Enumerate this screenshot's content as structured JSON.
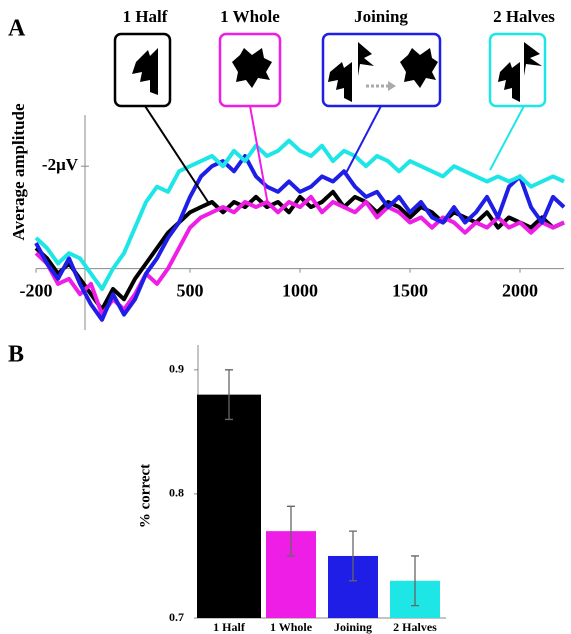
{
  "chart_data": [
    {
      "type": "line",
      "panel": "A",
      "ylabel": "Average amplitude",
      "x": [
        -200,
        -150,
        -100,
        -50,
        0,
        50,
        100,
        150,
        200,
        250,
        300,
        350,
        400,
        450,
        500,
        550,
        600,
        650,
        700,
        750,
        800,
        850,
        900,
        950,
        1000,
        1050,
        1100,
        1150,
        1200,
        1250,
        1300,
        1350,
        1400,
        1450,
        1500,
        1550,
        1600,
        1650,
        1700,
        1750,
        1800,
        1850,
        1900,
        1950,
        2000,
        2050,
        2100,
        2150,
        2200
      ],
      "series": [
        {
          "name": "1 Half",
          "color": "#000000",
          "values": [
            -0.4,
            -0.2,
            0.1,
            -0.1,
            0.2,
            0.5,
            0.8,
            0.4,
            0.6,
            0.2,
            -0.1,
            -0.4,
            -0.7,
            -0.9,
            -1.1,
            -1.2,
            -1.3,
            -1.1,
            -1.3,
            -1.2,
            -1.4,
            -1.2,
            -1.3,
            -1.1,
            -1.4,
            -1.2,
            -1.3,
            -1.5,
            -1.2,
            -1.4,
            -1.3,
            -1.1,
            -1.3,
            -1.2,
            -1.0,
            -1.2,
            -1.1,
            -0.9,
            -1.1,
            -1.0,
            -0.9,
            -1.1,
            -0.8,
            -1.0,
            -0.9,
            -0.8,
            -1.0,
            -0.8,
            -0.9
          ]
        },
        {
          "name": "1 Whole",
          "color": "#ee1ee6",
          "values": [
            -0.3,
            -0.1,
            0.3,
            0.2,
            0.5,
            0.3,
            0.9,
            0.6,
            0.8,
            0.5,
            0.1,
            0.3,
            0.0,
            -0.4,
            -0.8,
            -1.0,
            -1.1,
            -1.2,
            -1.1,
            -1.3,
            -1.2,
            -1.3,
            -1.1,
            -1.3,
            -1.2,
            -1.4,
            -1.1,
            -1.3,
            -1.2,
            -1.1,
            -1.3,
            -1.0,
            -1.2,
            -1.1,
            -0.9,
            -1.0,
            -0.8,
            -1.0,
            -0.9,
            -0.7,
            -0.9,
            -0.8,
            -1.0,
            -0.8,
            -0.9,
            -0.7,
            -0.9,
            -0.8,
            -0.9
          ]
        },
        {
          "name": "Joining",
          "color": "#1e1ee6",
          "values": [
            -0.5,
            -0.1,
            0.2,
            -0.2,
            0.3,
            0.7,
            1.0,
            0.5,
            0.9,
            0.6,
            0.1,
            -0.2,
            -0.6,
            -0.9,
            -1.4,
            -1.8,
            -2.0,
            -2.1,
            -1.9,
            -2.2,
            -1.8,
            -1.6,
            -1.5,
            -1.7,
            -1.5,
            -1.6,
            -1.8,
            -1.7,
            -1.9,
            -1.6,
            -1.4,
            -1.5,
            -1.2,
            -1.4,
            -1.1,
            -1.3,
            -1.0,
            -0.9,
            -1.2,
            -0.9,
            -1.1,
            -1.4,
            -1.0,
            -1.6,
            -1.8,
            -1.2,
            -0.9,
            -1.4,
            -1.2
          ]
        },
        {
          "name": "2 Halves",
          "color": "#1ee6e6",
          "values": [
            -0.6,
            -0.4,
            -0.1,
            -0.3,
            -0.2,
            0.1,
            0.4,
            0.0,
            -0.3,
            -0.8,
            -1.3,
            -1.6,
            -1.5,
            -1.9,
            -2.0,
            -2.1,
            -2.2,
            -2.0,
            -2.3,
            -2.1,
            -2.4,
            -2.2,
            -2.3,
            -2.5,
            -2.3,
            -2.2,
            -2.4,
            -2.1,
            -2.3,
            -2.2,
            -2.0,
            -2.2,
            -2.1,
            -1.9,
            -2.1,
            -2.0,
            -1.9,
            -1.8,
            -2.0,
            -1.9,
            -1.8,
            -1.7,
            -1.8,
            -1.7,
            -1.8,
            -1.6,
            -1.7,
            -1.8,
            -1.7
          ]
        }
      ],
      "xlim": [
        -200,
        2200
      ],
      "xticks": [
        -200,
        500,
        1000,
        1500,
        2000
      ],
      "ylim": [
        1.2,
        -3
      ],
      "yticks": [
        {
          "value": -2,
          "label": "-2μV"
        }
      ]
    },
    {
      "type": "bar",
      "panel": "B",
      "ylabel": "% correct",
      "categories": [
        "1 Half",
        "1 Whole",
        "Joining",
        "2 Halves"
      ],
      "values": [
        0.88,
        0.77,
        0.75,
        0.73
      ],
      "errors": [
        0.02,
        0.02,
        0.02,
        0.02
      ],
      "colors": [
        "#000000",
        "#ee1ee6",
        "#1e1ee6",
        "#1ee6e6"
      ],
      "ylim": [
        0.7,
        0.92
      ],
      "yticks": [
        0.7,
        0.8,
        0.9
      ]
    }
  ]
}
